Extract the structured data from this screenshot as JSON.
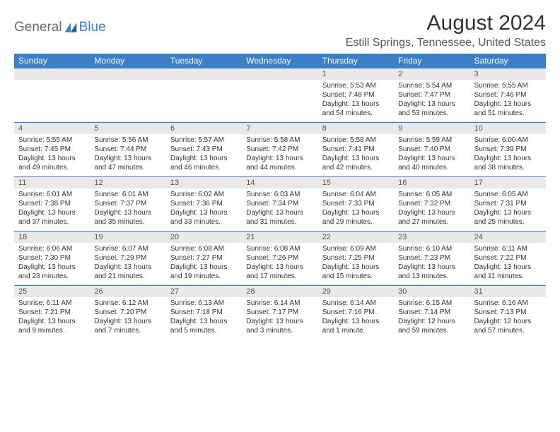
{
  "brand": {
    "part1": "General",
    "part2": "Blue"
  },
  "title": "August 2024",
  "location": "Estill Springs, Tennessee, United States",
  "colors": {
    "header_bg": "#3b7fc4",
    "header_text": "#ffffff",
    "daynum_bg": "#e9e9e9",
    "border": "#3b7fc4",
    "text": "#333333",
    "brand_gray": "#6a6a6a",
    "brand_blue": "#3b7fc4",
    "background": "#ffffff"
  },
  "day_headers": [
    "Sunday",
    "Monday",
    "Tuesday",
    "Wednesday",
    "Thursday",
    "Friday",
    "Saturday"
  ],
  "weeks": [
    [
      null,
      null,
      null,
      null,
      {
        "n": "1",
        "sr": "5:53 AM",
        "ss": "7:48 PM",
        "dl": "13 hours and 54 minutes."
      },
      {
        "n": "2",
        "sr": "5:54 AM",
        "ss": "7:47 PM",
        "dl": "13 hours and 53 minutes."
      },
      {
        "n": "3",
        "sr": "5:55 AM",
        "ss": "7:46 PM",
        "dl": "13 hours and 51 minutes."
      }
    ],
    [
      {
        "n": "4",
        "sr": "5:55 AM",
        "ss": "7:45 PM",
        "dl": "13 hours and 49 minutes."
      },
      {
        "n": "5",
        "sr": "5:56 AM",
        "ss": "7:44 PM",
        "dl": "13 hours and 47 minutes."
      },
      {
        "n": "6",
        "sr": "5:57 AM",
        "ss": "7:43 PM",
        "dl": "13 hours and 46 minutes."
      },
      {
        "n": "7",
        "sr": "5:58 AM",
        "ss": "7:42 PM",
        "dl": "13 hours and 44 minutes."
      },
      {
        "n": "8",
        "sr": "5:58 AM",
        "ss": "7:41 PM",
        "dl": "13 hours and 42 minutes."
      },
      {
        "n": "9",
        "sr": "5:59 AM",
        "ss": "7:40 PM",
        "dl": "13 hours and 40 minutes."
      },
      {
        "n": "10",
        "sr": "6:00 AM",
        "ss": "7:39 PM",
        "dl": "13 hours and 38 minutes."
      }
    ],
    [
      {
        "n": "11",
        "sr": "6:01 AM",
        "ss": "7:38 PM",
        "dl": "13 hours and 37 minutes."
      },
      {
        "n": "12",
        "sr": "6:01 AM",
        "ss": "7:37 PM",
        "dl": "13 hours and 35 minutes."
      },
      {
        "n": "13",
        "sr": "6:02 AM",
        "ss": "7:36 PM",
        "dl": "13 hours and 33 minutes."
      },
      {
        "n": "14",
        "sr": "6:03 AM",
        "ss": "7:34 PM",
        "dl": "13 hours and 31 minutes."
      },
      {
        "n": "15",
        "sr": "6:04 AM",
        "ss": "7:33 PM",
        "dl": "13 hours and 29 minutes."
      },
      {
        "n": "16",
        "sr": "6:05 AM",
        "ss": "7:32 PM",
        "dl": "13 hours and 27 minutes."
      },
      {
        "n": "17",
        "sr": "6:05 AM",
        "ss": "7:31 PM",
        "dl": "13 hours and 25 minutes."
      }
    ],
    [
      {
        "n": "18",
        "sr": "6:06 AM",
        "ss": "7:30 PM",
        "dl": "13 hours and 23 minutes."
      },
      {
        "n": "19",
        "sr": "6:07 AM",
        "ss": "7:29 PM",
        "dl": "13 hours and 21 minutes."
      },
      {
        "n": "20",
        "sr": "6:08 AM",
        "ss": "7:27 PM",
        "dl": "13 hours and 19 minutes."
      },
      {
        "n": "21",
        "sr": "6:08 AM",
        "ss": "7:26 PM",
        "dl": "13 hours and 17 minutes."
      },
      {
        "n": "22",
        "sr": "6:09 AM",
        "ss": "7:25 PM",
        "dl": "13 hours and 15 minutes."
      },
      {
        "n": "23",
        "sr": "6:10 AM",
        "ss": "7:23 PM",
        "dl": "13 hours and 13 minutes."
      },
      {
        "n": "24",
        "sr": "6:11 AM",
        "ss": "7:22 PM",
        "dl": "13 hours and 11 minutes."
      }
    ],
    [
      {
        "n": "25",
        "sr": "6:11 AM",
        "ss": "7:21 PM",
        "dl": "13 hours and 9 minutes."
      },
      {
        "n": "26",
        "sr": "6:12 AM",
        "ss": "7:20 PM",
        "dl": "13 hours and 7 minutes."
      },
      {
        "n": "27",
        "sr": "6:13 AM",
        "ss": "7:18 PM",
        "dl": "13 hours and 5 minutes."
      },
      {
        "n": "28",
        "sr": "6:14 AM",
        "ss": "7:17 PM",
        "dl": "13 hours and 3 minutes."
      },
      {
        "n": "29",
        "sr": "6:14 AM",
        "ss": "7:16 PM",
        "dl": "13 hours and 1 minute."
      },
      {
        "n": "30",
        "sr": "6:15 AM",
        "ss": "7:14 PM",
        "dl": "12 hours and 59 minutes."
      },
      {
        "n": "31",
        "sr": "6:16 AM",
        "ss": "7:13 PM",
        "dl": "12 hours and 57 minutes."
      }
    ]
  ],
  "labels": {
    "sunrise": "Sunrise:",
    "sunset": "Sunset:",
    "daylight": "Daylight:"
  }
}
